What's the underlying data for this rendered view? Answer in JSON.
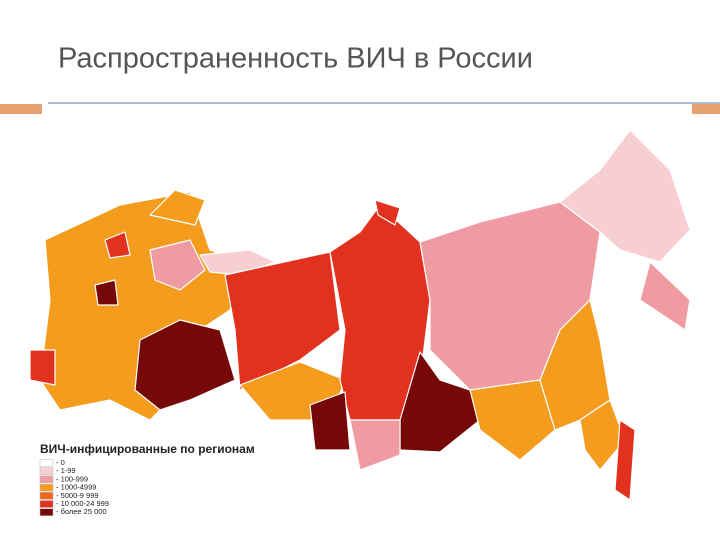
{
  "slide": {
    "title": "Распространенность ВИЧ в России"
  },
  "map": {
    "legend_title": "ВИЧ-инфицированные по регионам",
    "legend": [
      {
        "label": "- 0",
        "color": "#ffffff"
      },
      {
        "label": "- 1-99",
        "color": "#f7cfd2"
      },
      {
        "label": "- 100-999",
        "color": "#f09aa2"
      },
      {
        "label": "- 1000-4999",
        "color": "#f39c1e"
      },
      {
        "label": "- 5000-9 999",
        "color": "#f0641e"
      },
      {
        "label": "- 10 000-24 999",
        "color": "#e2311e"
      },
      {
        "label": "- более 25 000",
        "color": "#760808"
      }
    ]
  }
}
